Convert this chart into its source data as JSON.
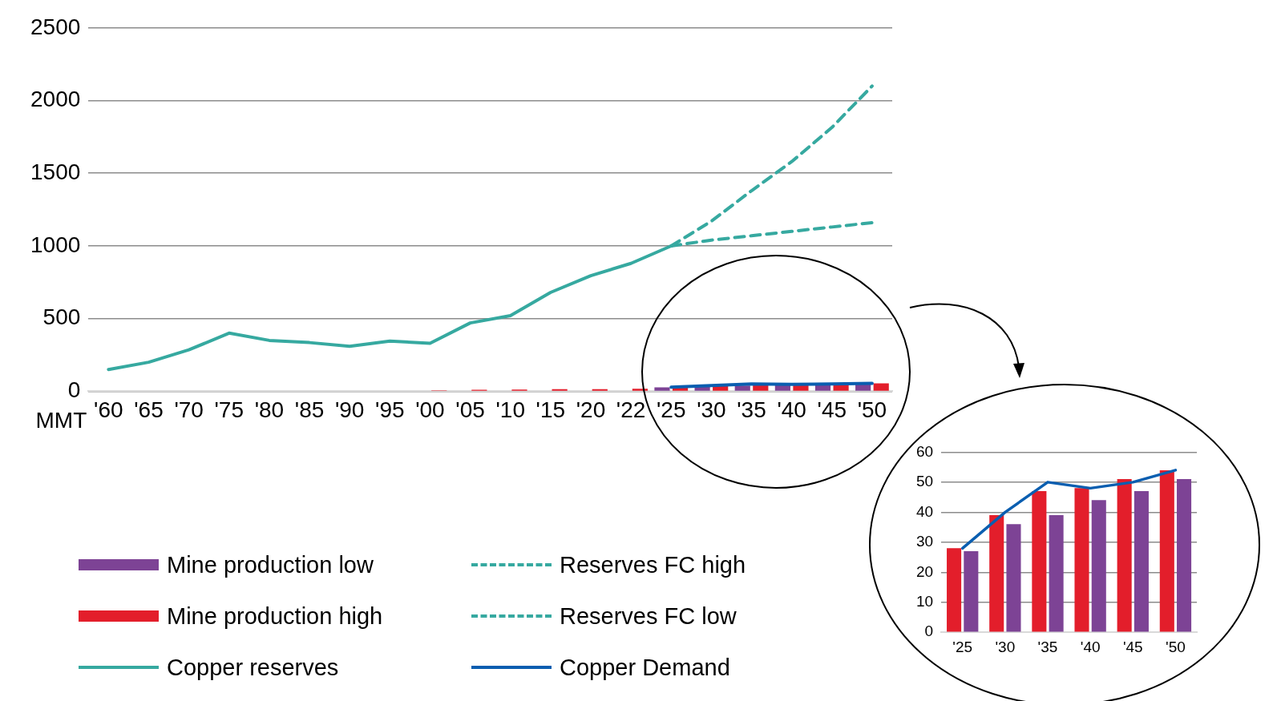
{
  "chart_data": [
    {
      "type": "bar",
      "ylabel": "MMT",
      "categories": [
        "'60",
        "'65",
        "'70",
        "'75",
        "'80",
        "'85",
        "'90",
        "'95",
        "'00",
        "'05",
        "'10",
        "'15",
        "'20",
        "'22",
        "'25",
        "'30",
        "'35",
        "'40",
        "'45",
        "'50"
      ],
      "series": [
        {
          "name": "Mine production low",
          "color": "#7d4395",
          "values": [
            null,
            null,
            null,
            null,
            null,
            null,
            null,
            null,
            null,
            null,
            null,
            null,
            null,
            null,
            27,
            36,
            39,
            44,
            47,
            51
          ]
        },
        {
          "name": "Mine production high",
          "color": "#e31e2b",
          "values": [
            null,
            null,
            null,
            null,
            null,
            null,
            null,
            null,
            6,
            10,
            12,
            14,
            15,
            17,
            28,
            39,
            47,
            48,
            51,
            54
          ]
        },
        {
          "name": "Copper reserves",
          "type": "line",
          "color": "#36a9a0",
          "line_style": "solid",
          "values": [
            150,
            200,
            285,
            400,
            350,
            335,
            310,
            345,
            330,
            470,
            520,
            680,
            795,
            880,
            1000,
            null,
            null,
            null,
            null,
            null
          ]
        },
        {
          "name": "Reserves FC high",
          "type": "line",
          "color": "#36a9a0",
          "line_style": "dashed",
          "values": [
            null,
            null,
            null,
            null,
            null,
            null,
            null,
            null,
            null,
            null,
            null,
            null,
            null,
            null,
            1000,
            1170,
            1380,
            1580,
            1815,
            2100
          ]
        },
        {
          "name": "Reserves FC low",
          "type": "line",
          "color": "#36a9a0",
          "line_style": "dashed",
          "values": [
            null,
            null,
            null,
            null,
            null,
            null,
            null,
            null,
            null,
            null,
            null,
            null,
            null,
            null,
            1000,
            1040,
            1070,
            1100,
            1130,
            1160
          ]
        },
        {
          "name": "Copper Demand",
          "type": "line",
          "color": "#0a5eb0",
          "line_style": "solid",
          "values": [
            null,
            null,
            null,
            null,
            null,
            null,
            null,
            null,
            null,
            null,
            null,
            null,
            null,
            null,
            28,
            40,
            50,
            48,
            50,
            54
          ]
        }
      ],
      "ylim": [
        0,
        2500
      ],
      "yticks": [
        0,
        500,
        1000,
        1500,
        2000,
        2500
      ],
      "grid": "y",
      "legend": "bottom left",
      "marker": "none"
    },
    {
      "type": "bar",
      "categories": [
        "'25",
        "'30",
        "'35",
        "'40",
        "'45",
        "'50"
      ],
      "series": [
        {
          "color": "#e31e2b",
          "values": [
            28,
            39,
            47,
            48,
            51,
            54
          ]
        },
        {
          "color": "#7d4395",
          "values": [
            27,
            36,
            39,
            44,
            47,
            51
          ]
        },
        {
          "type": "line",
          "color": "#0a5eb0",
          "line_style": "solid",
          "values": [
            28,
            40,
            50,
            48,
            50,
            54
          ]
        }
      ],
      "ylim": [
        0,
        60
      ],
      "yticks": [
        0,
        10,
        20,
        30,
        40,
        50,
        60
      ],
      "grid": "y",
      "legend": false,
      "marker": "none"
    }
  ]
}
